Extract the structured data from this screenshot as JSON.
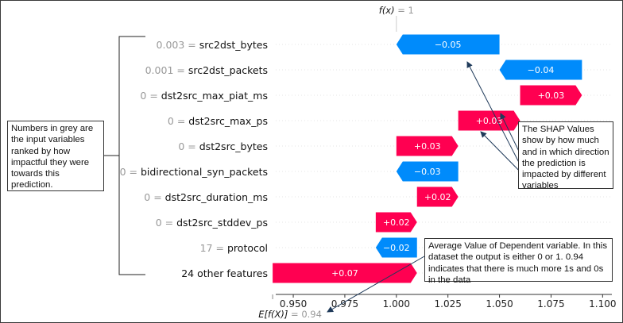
{
  "chart_data": {
    "type": "waterfall",
    "top_label": {
      "symbol": "f(x)",
      "value": "= 1"
    },
    "bottom_label": {
      "symbol": "E[f(X)]",
      "value": "= 0.94"
    },
    "base_value": 0.94,
    "output_value": 1,
    "rows": [
      {
        "value_text": "0.003",
        "feature": "src2dst_bytes",
        "shap": -0.05,
        "label": "−0.05"
      },
      {
        "value_text": "0.001",
        "feature": "src2dst_packets",
        "shap": -0.04,
        "label": "−0.04"
      },
      {
        "value_text": "0",
        "feature": "dst2src_max_piat_ms",
        "shap": 0.03,
        "label": "+0.03"
      },
      {
        "value_text": "0",
        "feature": "dst2src_max_ps",
        "shap": 0.03,
        "label": "+0.03"
      },
      {
        "value_text": "0",
        "feature": "dst2src_bytes",
        "shap": 0.03,
        "label": "+0.03"
      },
      {
        "value_text": "0",
        "feature": "bidirectional_syn_packets",
        "shap": -0.03,
        "label": "−0.03"
      },
      {
        "value_text": "0",
        "feature": "dst2src_duration_ms",
        "shap": 0.02,
        "label": "+0.02"
      },
      {
        "value_text": "0",
        "feature": "dst2src_stddev_ps",
        "shap": 0.02,
        "label": "+0.02"
      },
      {
        "value_text": "17",
        "feature": "protocol",
        "shap": -0.02,
        "label": "−0.02"
      },
      {
        "value_text": "",
        "feature": "24 other features",
        "shap": 0.07,
        "label": "+0.07"
      }
    ],
    "x_ticks": [
      "0.950",
      "0.975",
      "1.000",
      "1.025",
      "1.050",
      "1.075",
      "1.100"
    ],
    "x_tick_values": [
      0.95,
      0.975,
      1.0,
      1.025,
      1.05,
      1.075,
      1.1
    ],
    "xlim": [
      0.9415,
      1.1045
    ]
  },
  "annotations": {
    "left_note": "Numbers in grey are the input variables ranked by how impactful they were towards this prediction.",
    "right_note": "The SHAP Values show by how much and in which direction the prediction is impacted by different variables",
    "bottom_note": "Average Value of Dependent variable. In this dataset the output is either 0 or 1. 0.94 indicates that there is much more 1s and 0s in the data"
  },
  "colors": {
    "positive": "#ff0051",
    "negative": "#008bfb",
    "grey_text": "#999999",
    "axis": "#333333"
  }
}
